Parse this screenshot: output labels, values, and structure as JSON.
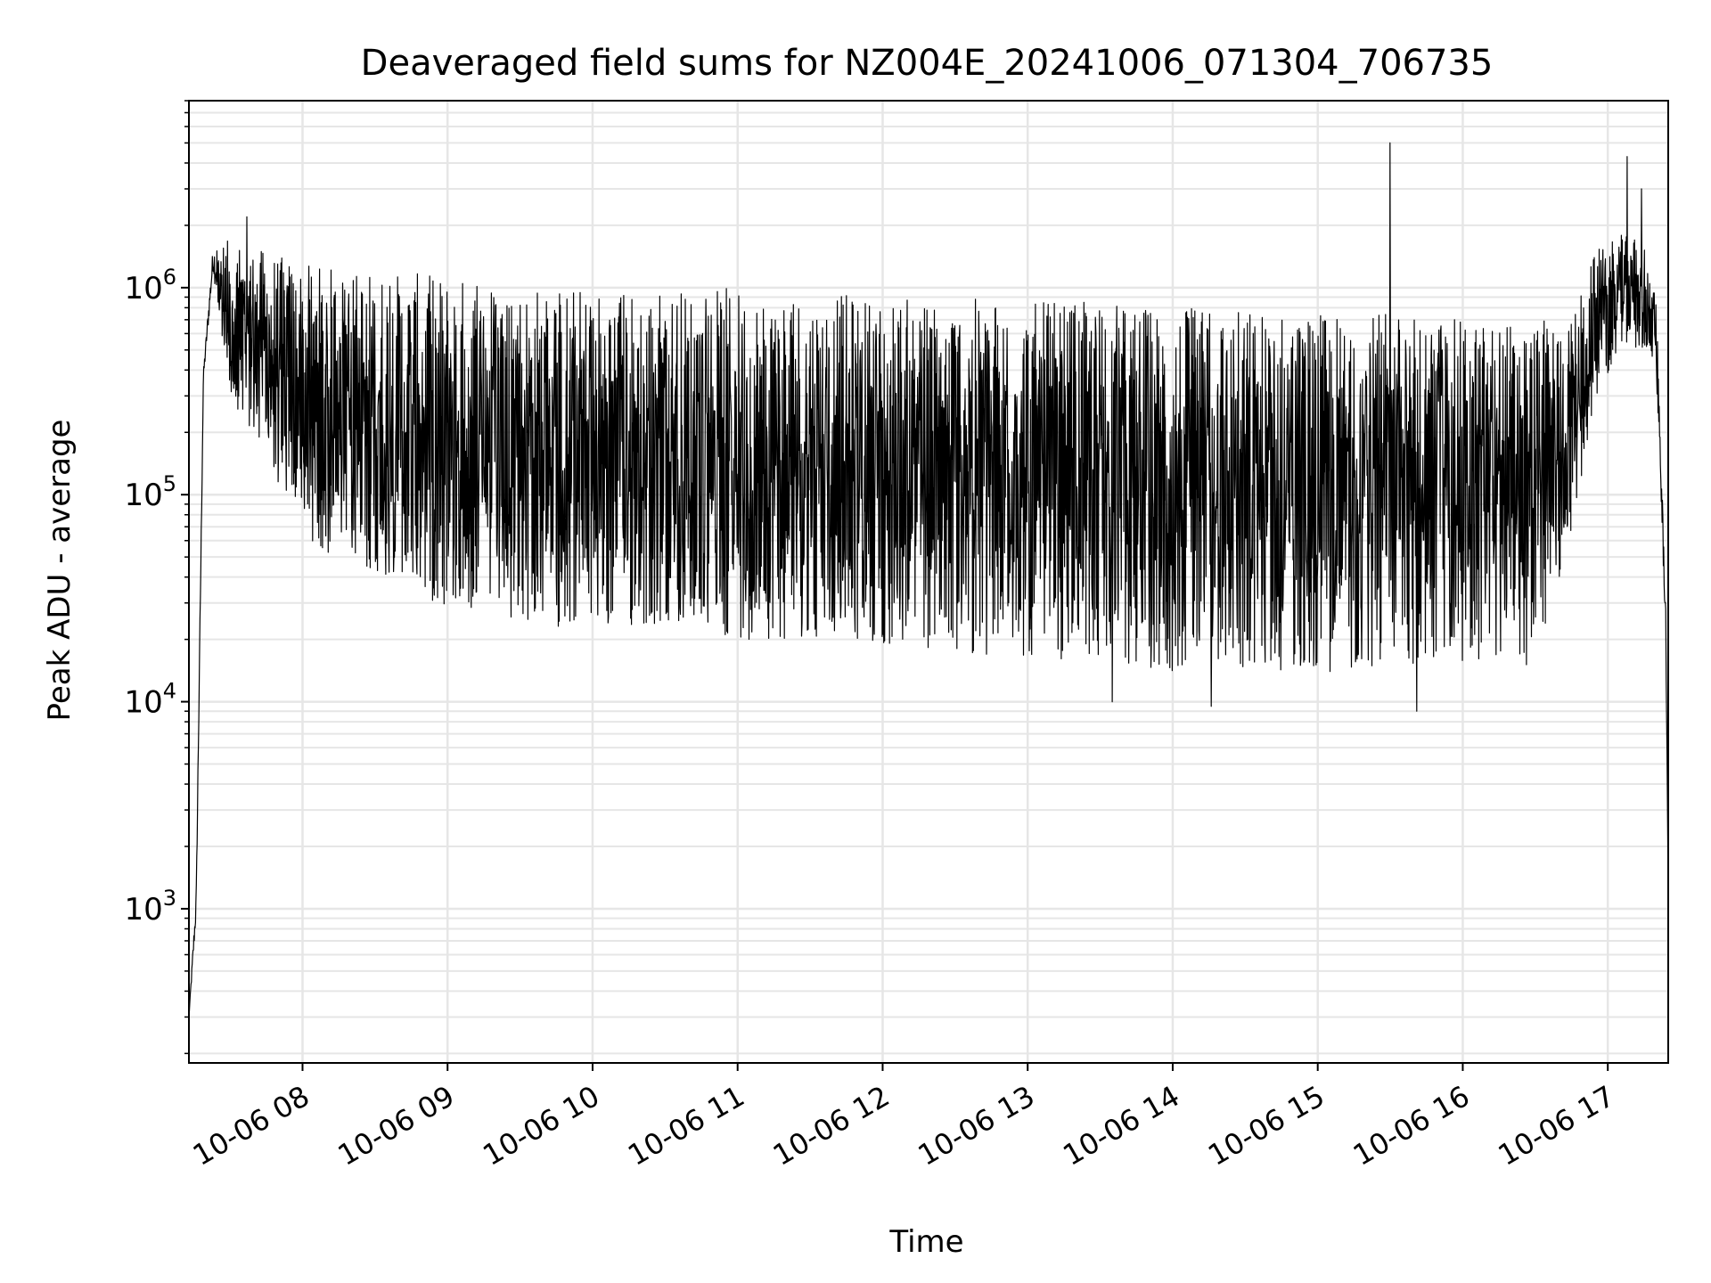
{
  "chart_data": {
    "type": "line",
    "title": "Deaveraged field sums for NZ004E_20241006_071304_706735",
    "xlabel": "Time",
    "ylabel": "Peak ADU - average",
    "yscale": "log",
    "ylim": [
      180,
      8000000
    ],
    "xlim": [
      "2024-10-06 07:13",
      "2024-10-06 17:25"
    ],
    "x_ticks": [
      {
        "value": "2024-10-06 08:00",
        "label": "10-06 08"
      },
      {
        "value": "2024-10-06 09:00",
        "label": "10-06 09"
      },
      {
        "value": "2024-10-06 10:00",
        "label": "10-06 10"
      },
      {
        "value": "2024-10-06 11:00",
        "label": "10-06 11"
      },
      {
        "value": "2024-10-06 12:00",
        "label": "10-06 12"
      },
      {
        "value": "2024-10-06 13:00",
        "label": "10-06 13"
      },
      {
        "value": "2024-10-06 14:00",
        "label": "10-06 14"
      },
      {
        "value": "2024-10-06 15:00",
        "label": "10-06 15"
      },
      {
        "value": "2024-10-06 16:00",
        "label": "10-06 16"
      },
      {
        "value": "2024-10-06 17:00",
        "label": "10-06 17"
      }
    ],
    "y_ticks": [
      {
        "value": 1000,
        "base": "10",
        "exp": "3"
      },
      {
        "value": 10000,
        "base": "10",
        "exp": "4"
      },
      {
        "value": 100000,
        "base": "10",
        "exp": "5"
      },
      {
        "value": 1000000,
        "base": "10",
        "exp": "6"
      }
    ],
    "grid": "major and minor",
    "line_color": "#000000",
    "grid_color": "#e6e6e6",
    "series": [
      {
        "envelope": [
          {
            "x": "2024-10-06 07:13",
            "high": 300,
            "low": 300
          },
          {
            "x": "2024-10-06 07:16",
            "high": 1200,
            "low": 900
          },
          {
            "x": "2024-10-06 07:19",
            "high": 400000,
            "low": 350000
          },
          {
            "x": "2024-10-06 07:23",
            "high": 1600000,
            "low": 1200000
          },
          {
            "x": "2024-10-06 07:30",
            "high": 1700000,
            "low": 300000
          },
          {
            "x": "2024-10-06 07:45",
            "high": 1500000,
            "low": 150000
          },
          {
            "x": "2024-10-06 08:00",
            "high": 1300000,
            "low": 60000
          },
          {
            "x": "2024-10-06 08:30",
            "high": 1200000,
            "low": 40000
          },
          {
            "x": "2024-10-06 09:00",
            "high": 1150000,
            "low": 28000
          },
          {
            "x": "2024-10-06 09:30",
            "high": 1050000,
            "low": 24000
          },
          {
            "x": "2024-10-06 10:00",
            "high": 1000000,
            "low": 22000
          },
          {
            "x": "2024-10-06 10:30",
            "high": 1000000,
            "low": 22000
          },
          {
            "x": "2024-10-06 11:00",
            "high": 1000000,
            "low": 20000
          },
          {
            "x": "2024-10-06 11:30",
            "high": 950000,
            "low": 20000
          },
          {
            "x": "2024-10-06 12:00",
            "high": 900000,
            "low": 18000
          },
          {
            "x": "2024-10-06 12:30",
            "high": 900000,
            "low": 17000
          },
          {
            "x": "2024-10-06 13:00",
            "high": 850000,
            "low": 16000
          },
          {
            "x": "2024-10-06 13:30",
            "high": 850000,
            "low": 15000
          },
          {
            "x": "2024-10-06 14:00",
            "high": 800000,
            "low": 14000
          },
          {
            "x": "2024-10-06 14:30",
            "high": 800000,
            "low": 14000
          },
          {
            "x": "2024-10-06 15:00",
            "high": 750000,
            "low": 14000
          },
          {
            "x": "2024-10-06 15:30",
            "high": 750000,
            "low": 14000
          },
          {
            "x": "2024-10-06 16:00",
            "high": 700000,
            "low": 15000
          },
          {
            "x": "2024-10-06 16:30",
            "high": 700000,
            "low": 15000
          },
          {
            "x": "2024-10-06 16:45",
            "high": 700000,
            "low": 60000
          },
          {
            "x": "2024-10-06 16:55",
            "high": 1500000,
            "low": 300000
          },
          {
            "x": "2024-10-06 17:05",
            "high": 1800000,
            "low": 500000
          },
          {
            "x": "2024-10-06 17:15",
            "high": 1700000,
            "low": 500000
          },
          {
            "x": "2024-10-06 17:20",
            "high": 900000,
            "low": 400000
          },
          {
            "x": "2024-10-06 17:24",
            "high": 30000,
            "low": 20000
          },
          {
            "x": "2024-10-06 17:25",
            "high": 1200,
            "low": 900
          }
        ],
        "spikes": [
          {
            "x": "2024-10-06 07:37",
            "y": 2200000
          },
          {
            "x": "2024-10-06 15:30",
            "y": 5000000
          },
          {
            "x": "2024-10-06 17:08",
            "y": 4300000
          },
          {
            "x": "2024-10-06 17:14",
            "y": 3000000
          }
        ],
        "dips": [
          {
            "x": "2024-10-06 15:41",
            "y": 9000
          },
          {
            "x": "2024-10-06 14:16",
            "y": 9500
          },
          {
            "x": "2024-10-06 13:35",
            "y": 10000
          }
        ]
      }
    ]
  }
}
